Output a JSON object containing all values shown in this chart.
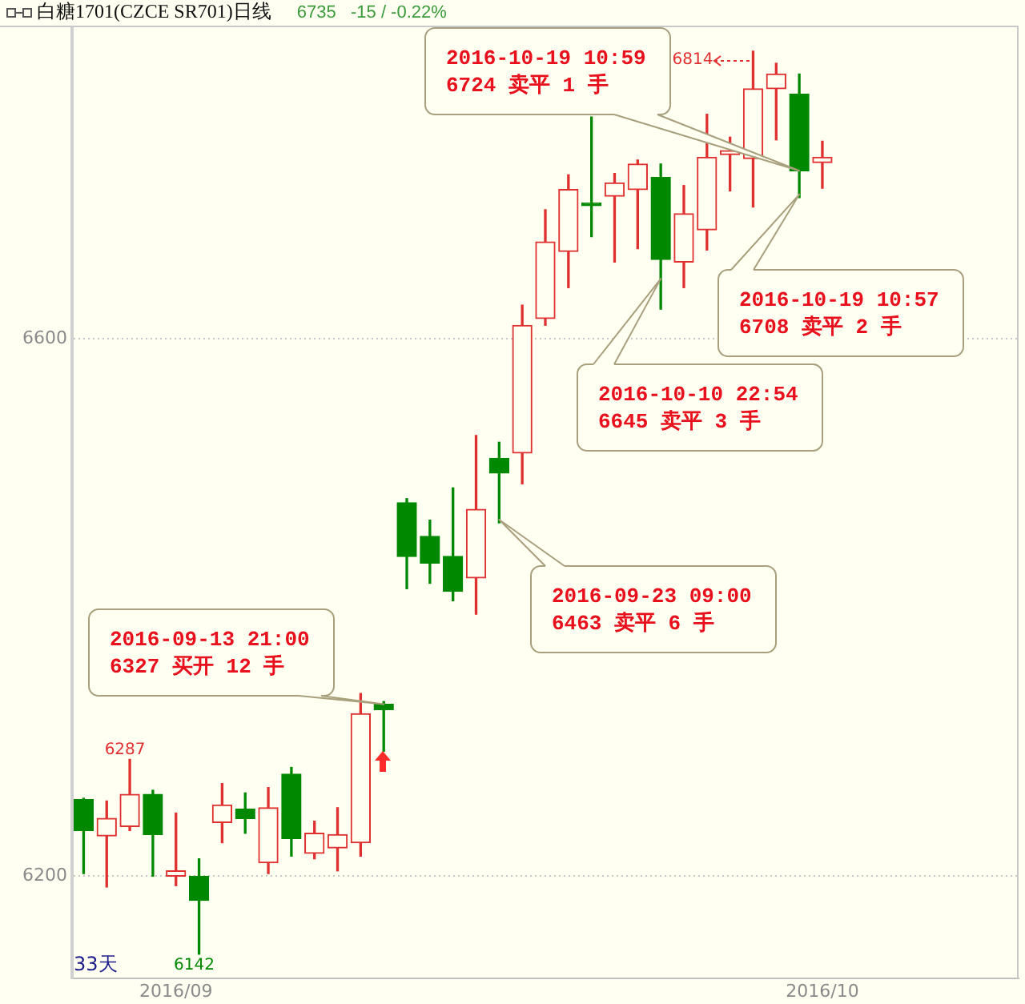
{
  "chart_data": {
    "type": "candlestick",
    "title": "白糖1701(CZCE SR701)日线",
    "subtitle": "6735   -15 / -0.22%",
    "categories": [
      null,
      null,
      null,
      null,
      "2016/09",
      null,
      null,
      null,
      null,
      null,
      null,
      null,
      null,
      null,
      null,
      null,
      null,
      null,
      null,
      null,
      null,
      null,
      null,
      null,
      null,
      null,
      null,
      null,
      null,
      null,
      null,
      null,
      "2016/10",
      null,
      null,
      null,
      null,
      null,
      null,
      null,
      null
    ],
    "ohlc": [
      [
        6257,
        6258,
        6202,
        6234
      ],
      [
        6230,
        6256,
        6192,
        6243
      ],
      [
        6237,
        6287,
        6234,
        6261
      ],
      [
        6261,
        6264,
        6200,
        6231
      ],
      [
        6200,
        6247,
        6193,
        6204
      ],
      [
        6200,
        6213,
        6142,
        6182
      ],
      [
        6240,
        6269,
        6225,
        6253
      ],
      [
        6250,
        6262,
        6232,
        6243
      ],
      [
        6210,
        6266,
        6202,
        6251
      ],
      [
        6276,
        6281,
        6215,
        6228
      ],
      [
        6217,
        6241,
        6213,
        6232
      ],
      [
        6221,
        6251,
        6204,
        6231
      ],
      [
        6225,
        6336,
        6215,
        6321
      ],
      [
        6328,
        6330,
        6293,
        6324
      ],
      [
        6478,
        6481,
        6414,
        6438
      ],
      [
        6453,
        6465,
        6418,
        6433
      ],
      [
        6438,
        6489,
        6405,
        6412
      ],
      [
        6422,
        6528,
        6395,
        6473
      ],
      [
        6511,
        6523,
        6463,
        6500
      ],
      [
        6515,
        6625,
        6492,
        6610
      ],
      [
        6615,
        6696,
        6610,
        6672
      ],
      [
        6665,
        6722,
        6638,
        6711
      ],
      [
        6701,
        6765,
        6676,
        6699
      ],
      [
        6706,
        6723,
        6657,
        6716
      ],
      [
        6711,
        6733,
        6667,
        6730
      ],
      [
        6720,
        6730,
        6622,
        6659
      ],
      [
        6657,
        6714,
        6638,
        6693
      ],
      [
        6681,
        6767,
        6666,
        6735
      ],
      [
        6737,
        6750,
        6710,
        6740
      ],
      [
        6734,
        6814,
        6698,
        6786
      ],
      [
        6786,
        6805,
        6748,
        6797
      ],
      [
        6782,
        6797,
        6705,
        6725
      ],
      [
        6731,
        6747,
        6712,
        6735
      ],
      null,
      null,
      null,
      null,
      null,
      null,
      null,
      null
    ],
    "colors": [
      "#008800",
      "#e03030",
      "#e03030",
      "#008800",
      "#e03030",
      "#008800",
      "#e03030",
      "#008800",
      "#e03030",
      "#008800",
      "#e03030",
      "#e03030",
      "#e03030",
      "#008800",
      "#008800",
      "#008800",
      "#008800",
      "#e03030",
      "#008800",
      "#e03030",
      "#e03030",
      "#e03030",
      "#008800",
      "#e03030",
      "#e03030",
      "#008800",
      "#e03030",
      "#e03030",
      "#e03030",
      "#e03030",
      "#e03030",
      "#008800",
      "#e03030",
      null,
      null,
      null,
      null,
      null,
      null,
      null,
      null
    ],
    "ylim": [
      6124,
      6833
    ],
    "yticks": [
      6200,
      6600
    ],
    "grid": "y",
    "annotations": [
      "6814",
      "2016-10-19 10:59\n6724 卖平 1 手",
      "2016-10-19 10:57\n6708 卖平 2 手",
      "2016-10-10 22:54\n6645 卖平 3 手",
      "2016-09-23 09:00\n6463 卖平 6 手",
      "2016-09-13 21:00\n6327 买开 12 手",
      "6287",
      "6142",
      "33天"
    ]
  }
}
